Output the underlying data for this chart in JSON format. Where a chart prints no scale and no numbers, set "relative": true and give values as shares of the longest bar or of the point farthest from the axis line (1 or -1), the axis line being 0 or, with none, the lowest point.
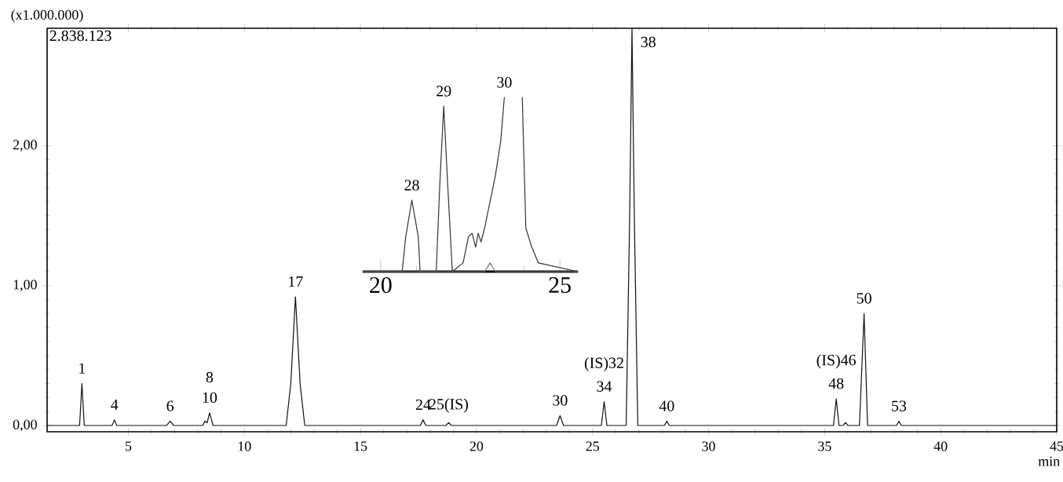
{
  "chart_data": [
    {
      "type": "line",
      "ylabel": "(x1.000.000)",
      "xlabel": "min",
      "xlim": [
        1.5,
        45
      ],
      "ylim": [
        -0.045,
        2.84
      ],
      "xticks": [
        5,
        10,
        15,
        20,
        25,
        30,
        35,
        40,
        45
      ],
      "yticks": [
        {
          "value": 0,
          "label": "0,00"
        },
        {
          "value": 1,
          "label": "1,00"
        },
        {
          "value": 2,
          "label": "2,00"
        }
      ],
      "series": [
        {
          "color": "#111111",
          "x": [
            1.5,
            2.9,
            3.0,
            3.1,
            4.3,
            4.4,
            4.5,
            6.65,
            6.8,
            6.95,
            8.2,
            8.3,
            8.4,
            8.5,
            8.65,
            11.8,
            12.0,
            12.2,
            12.4,
            12.6,
            17.58,
            17.7,
            17.82,
            18.68,
            18.8,
            18.92,
            23.45,
            23.6,
            23.75,
            25.38,
            25.5,
            25.62,
            26.45,
            26.6,
            26.7,
            26.8,
            26.95,
            28.1,
            28.2,
            28.3,
            35.38,
            35.5,
            35.62,
            35.8,
            35.9,
            36.0,
            36.5,
            36.7,
            36.85,
            38.1,
            38.2,
            38.3,
            45
          ],
          "values": [
            0,
            0,
            0.3,
            0,
            0,
            0.04,
            0,
            0,
            0.03,
            0,
            0,
            0.03,
            0.02,
            0.09,
            0,
            0,
            0.3,
            0.92,
            0.3,
            0,
            0,
            0.04,
            0,
            0,
            0.02,
            0,
            0,
            0.07,
            0,
            0,
            0.17,
            0,
            0,
            1.5,
            2.84,
            1.5,
            0,
            0,
            0.03,
            0,
            0,
            0.19,
            0,
            0,
            0.02,
            0,
            0,
            0.8,
            0,
            0,
            0.03,
            0,
            0
          ]
        }
      ],
      "annotations": [
        "2.838.123",
        {
          "text": "1",
          "x": 3.0,
          "y": 0.3
        },
        {
          "text": "4",
          "x": 4.4,
          "y": 0.04
        },
        {
          "text": "6",
          "x": 6.8,
          "y": 0.03
        },
        {
          "text": "10",
          "x": 8.5,
          "y": 0.09
        },
        {
          "text": "8",
          "x": 8.5,
          "y": 0.09
        },
        {
          "text": "17",
          "x": 12.2,
          "y": 0.92
        },
        {
          "text": "24",
          "x": 17.7,
          "y": 0.04
        },
        {
          "text": "25(IS)",
          "x": 18.8,
          "y": 0.02
        },
        {
          "text": "30",
          "x": 23.6,
          "y": 0.07
        },
        {
          "text": "34",
          "x": 25.5,
          "y": 0.17
        },
        {
          "text": "(IS)32",
          "x": 25.5,
          "y": 0.17
        },
        {
          "text": "38",
          "x": 26.7,
          "y": 2.84
        },
        {
          "text": "40",
          "x": 28.2,
          "y": 0.03
        },
        {
          "text": "48",
          "x": 35.5,
          "y": 0.19
        },
        {
          "text": "(IS)46",
          "x": 35.5,
          "y": 0.19
        },
        {
          "text": "50",
          "x": 36.7,
          "y": 0.8
        },
        {
          "text": "53",
          "x": 38.2,
          "y": 0.03
        }
      ]
    },
    {
      "type": "line",
      "relative": true,
      "tick_labels": "x",
      "xlim": [
        19.5,
        25.5
      ],
      "xticks": [
        20,
        25
      ],
      "series": [
        {
          "color": "#333333",
          "x": [
            19.5,
            20.6,
            20.7,
            20.87,
            21.05,
            21.1,
            21.55,
            21.65,
            21.76,
            21.87,
            22.0,
            22.3,
            22.45,
            22.55,
            22.65,
            22.72,
            22.8,
            22.9,
            23.0,
            23.2,
            23.35,
            23.45,
            23.7,
            23.95,
            24.05,
            24.2,
            24.4,
            25.5
          ],
          "values": [
            0,
            0,
            0.2,
            0.41,
            0.2,
            0,
            0,
            0.5,
            0.95,
            0.5,
            0,
            0.05,
            0.2,
            0.22,
            0.14,
            0.22,
            0.17,
            0.25,
            0.35,
            0.55,
            0.75,
            1.0,
            null,
            1.0,
            0.25,
            0.15,
            0.05,
            0
          ]
        },
        {
          "color": "#777777",
          "x": [
            19.5,
            22.9,
            23.05,
            23.2,
            25.5
          ],
          "values": [
            0,
            0,
            0.05,
            0,
            0
          ]
        }
      ],
      "annotations": [
        {
          "text": "28",
          "x": 20.87,
          "y": 0.41
        },
        {
          "text": "29",
          "x": 21.76,
          "y": 0.95
        },
        {
          "text": "30",
          "x": 23.45,
          "y": 1.0
        }
      ]
    }
  ]
}
